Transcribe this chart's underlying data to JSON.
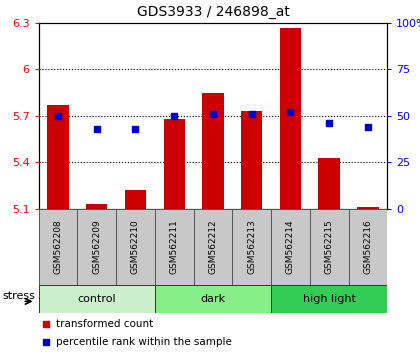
{
  "title": "GDS3933 / 246898_at",
  "samples": [
    "GSM562208",
    "GSM562209",
    "GSM562210",
    "GSM562211",
    "GSM562212",
    "GSM562213",
    "GSM562214",
    "GSM562215",
    "GSM562216"
  ],
  "red_values": [
    5.77,
    5.13,
    5.22,
    5.68,
    5.85,
    5.73,
    6.27,
    5.43,
    5.11
  ],
  "blue_percentile": [
    50,
    43,
    43,
    50,
    51,
    51,
    52,
    46,
    44
  ],
  "ylim_left": [
    5.1,
    6.3
  ],
  "ylim_right": [
    0,
    100
  ],
  "yticks_left": [
    5.1,
    5.4,
    5.7,
    6.0,
    6.3
  ],
  "yticks_right": [
    0,
    25,
    50,
    75,
    100
  ],
  "ytick_labels_left": [
    "5.1",
    "5.4",
    "5.7",
    "6",
    "6.3"
  ],
  "ytick_labels_right": [
    "0",
    "25",
    "50",
    "75",
    "100%"
  ],
  "hlines": [
    5.4,
    5.7,
    6.0
  ],
  "groups": [
    {
      "label": "control",
      "start": 0,
      "end": 3,
      "color": "#ccf0cc"
    },
    {
      "label": "dark",
      "start": 3,
      "end": 6,
      "color": "#88ee88"
    },
    {
      "label": "high light",
      "start": 6,
      "end": 9,
      "color": "#33cc55"
    }
  ],
  "bar_color": "#CC0000",
  "dot_color": "#0000CC",
  "bar_bottom": 5.1,
  "background_label": "#C8C8C8",
  "legend_items": [
    "transformed count",
    "percentile rank within the sample"
  ],
  "stress_label": "stress"
}
